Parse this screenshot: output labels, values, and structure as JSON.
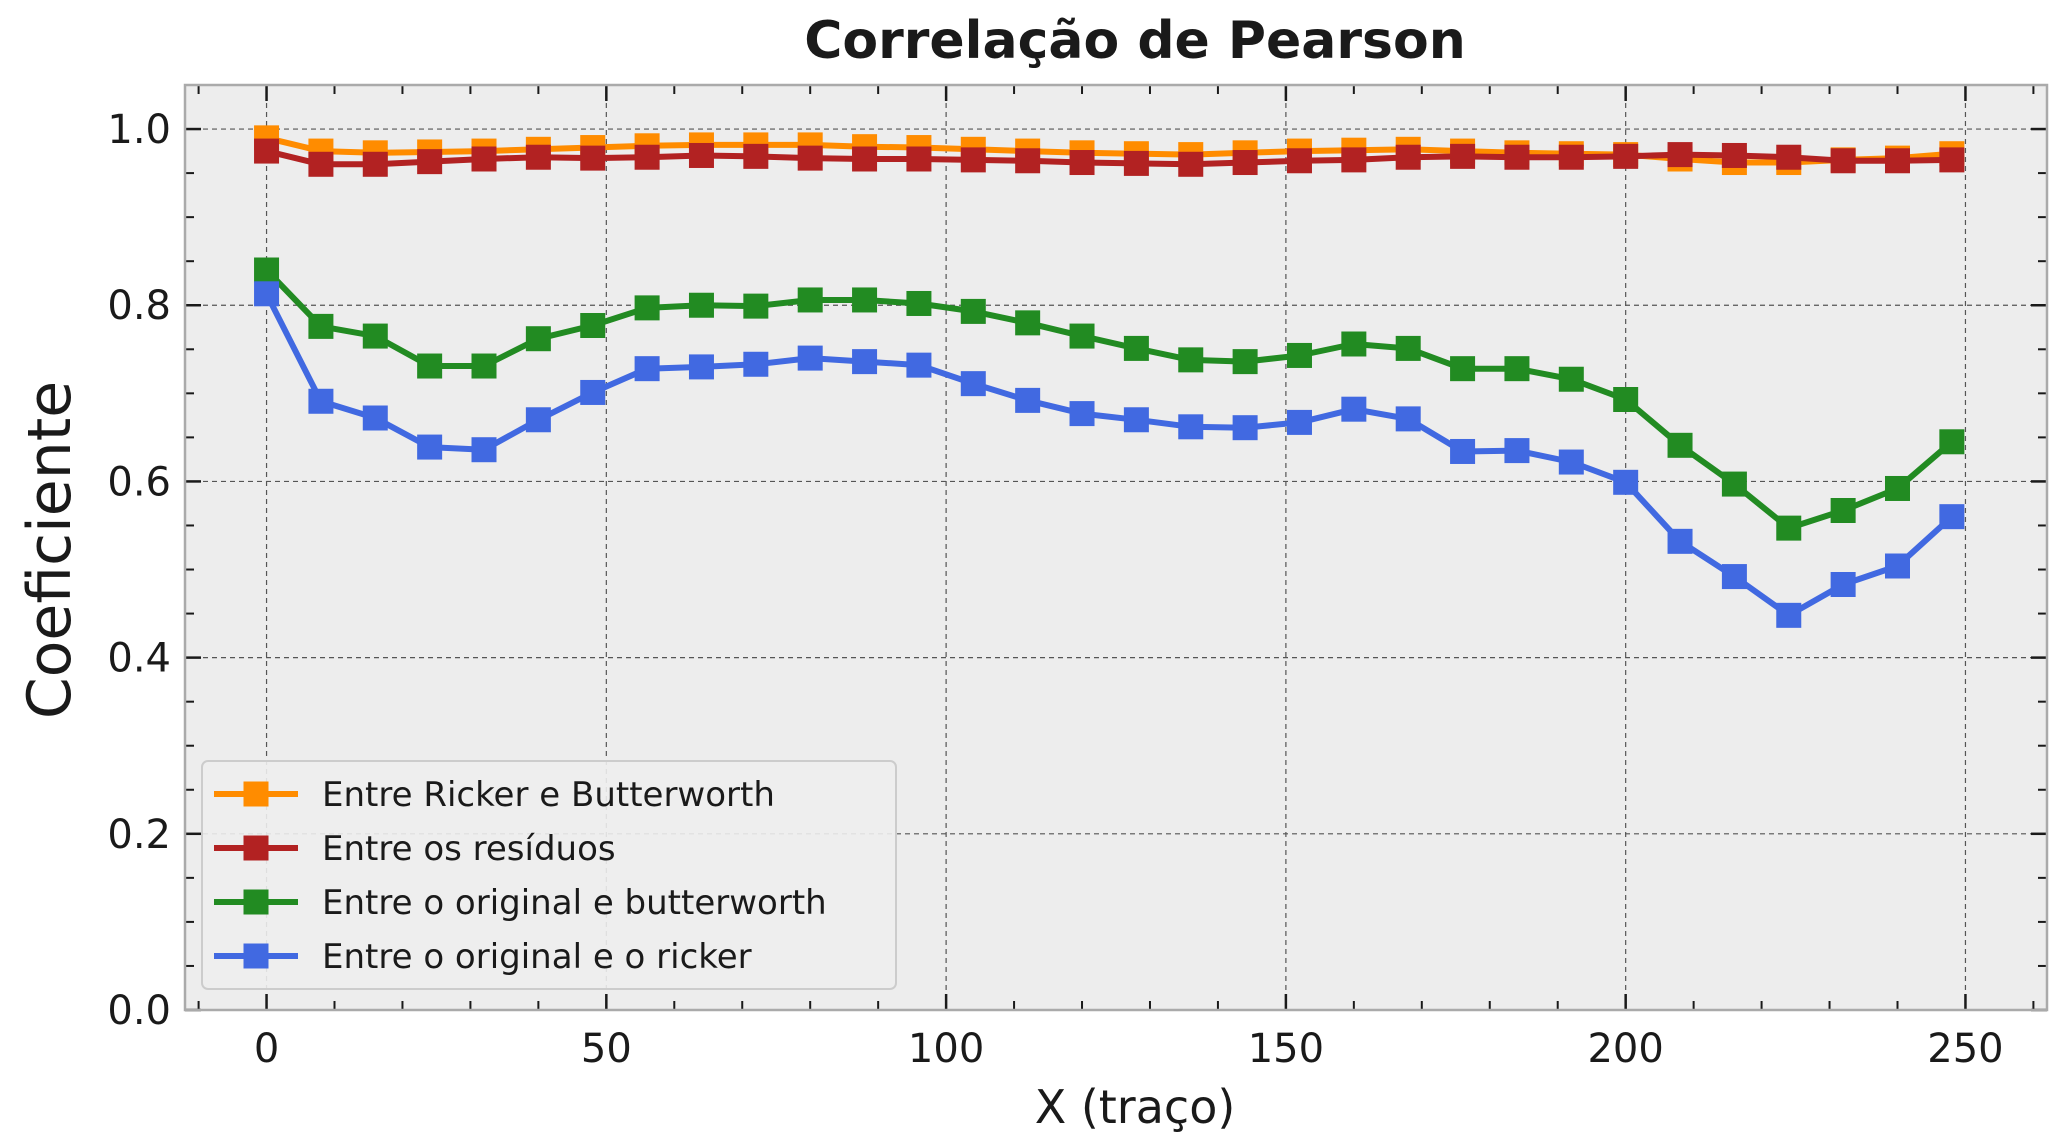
{
  "chart_data": {
    "type": "line",
    "title": "Correlação de Pearson",
    "xlabel": "X (traço)",
    "ylabel": "Coeficiente",
    "xlim": [
      -12,
      262
    ],
    "ylim": [
      0.0,
      1.05
    ],
    "xticks": [
      0,
      50,
      100,
      150,
      200,
      250
    ],
    "xtick_labels": [
      "0",
      "50",
      "100",
      "150",
      "200",
      "250"
    ],
    "yticks": [
      0.0,
      0.2,
      0.4,
      0.6,
      0.8,
      1.0
    ],
    "ytick_labels": [
      "0.0",
      "0.2",
      "0.4",
      "0.6",
      "0.8",
      "1.0"
    ],
    "grid": true,
    "legend_position": "lower-left",
    "background": "#ededed",
    "x": [
      0,
      8,
      16,
      24,
      32,
      40,
      48,
      56,
      64,
      72,
      80,
      88,
      96,
      104,
      112,
      120,
      128,
      136,
      144,
      152,
      160,
      168,
      176,
      184,
      192,
      200,
      208,
      216,
      224,
      232,
      240,
      248
    ],
    "series": [
      {
        "name": "Entre Ricker e Butterworth",
        "color": "#ff8c00",
        "values": [
          0.99,
          0.975,
          0.973,
          0.974,
          0.975,
          0.977,
          0.979,
          0.981,
          0.982,
          0.982,
          0.982,
          0.98,
          0.979,
          0.977,
          0.975,
          0.973,
          0.972,
          0.971,
          0.973,
          0.975,
          0.976,
          0.977,
          0.975,
          0.973,
          0.972,
          0.971,
          0.966,
          0.962,
          0.962,
          0.965,
          0.967,
          0.972
        ]
      },
      {
        "name": "Entre os resíduos",
        "color": "#b22222",
        "values": [
          0.975,
          0.96,
          0.96,
          0.963,
          0.966,
          0.968,
          0.967,
          0.968,
          0.97,
          0.969,
          0.967,
          0.966,
          0.966,
          0.965,
          0.964,
          0.962,
          0.961,
          0.96,
          0.962,
          0.964,
          0.965,
          0.968,
          0.969,
          0.968,
          0.968,
          0.969,
          0.971,
          0.97,
          0.968,
          0.964,
          0.964,
          0.965
        ]
      },
      {
        "name": "Entre o original e butterworth",
        "color": "#228b22",
        "values": [
          0.84,
          0.776,
          0.765,
          0.731,
          0.731,
          0.762,
          0.777,
          0.797,
          0.8,
          0.799,
          0.806,
          0.806,
          0.802,
          0.793,
          0.78,
          0.765,
          0.751,
          0.738,
          0.736,
          0.743,
          0.756,
          0.751,
          0.728,
          0.728,
          0.716,
          0.693,
          0.641,
          0.597,
          0.547,
          0.567,
          0.592,
          0.645
        ]
      },
      {
        "name": "Entre o original e o ricker",
        "color": "#4169e1",
        "values": [
          0.813,
          0.691,
          0.672,
          0.639,
          0.636,
          0.67,
          0.701,
          0.728,
          0.73,
          0.733,
          0.74,
          0.736,
          0.732,
          0.711,
          0.692,
          0.677,
          0.67,
          0.662,
          0.661,
          0.667,
          0.682,
          0.671,
          0.634,
          0.635,
          0.622,
          0.599,
          0.532,
          0.492,
          0.448,
          0.483,
          0.504,
          0.56
        ]
      }
    ]
  }
}
